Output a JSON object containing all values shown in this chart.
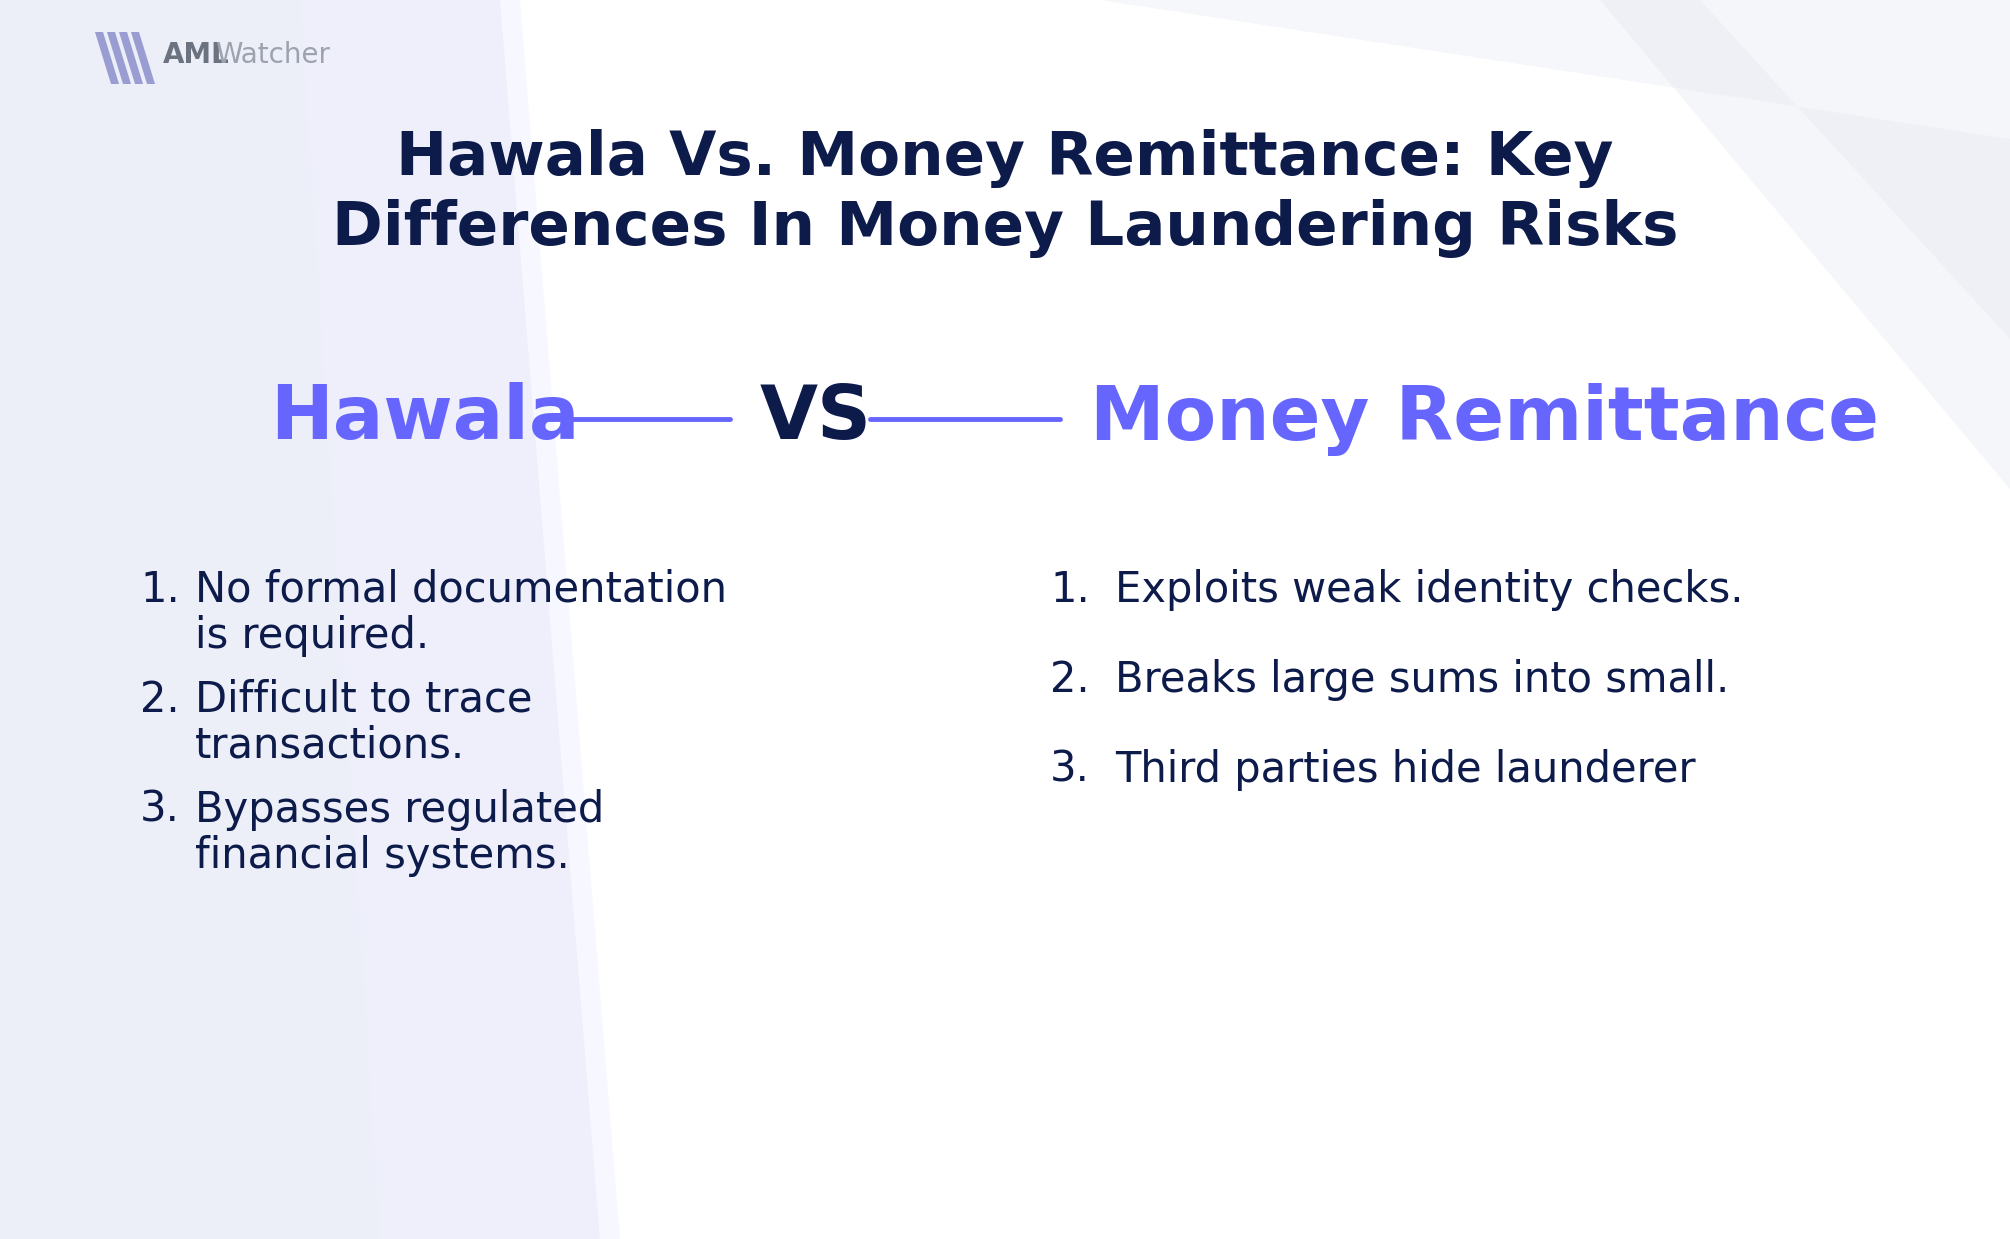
{
  "title_line1": "Hawala Vs. Money Remittance: Key",
  "title_line2": "Differences In Money Laundering Risks",
  "title_color": "#0d1b4b",
  "title_fontsize": 44,
  "bg_color": "#eceef8",
  "logo_text_aml": "AML",
  "logo_text_watcher": "Watcher",
  "logo_color_aml": "#6b7280",
  "logo_color_watcher": "#9ca3af",
  "logo_icon_color": "#8b8fcc",
  "vs_label_color": "#6666ff",
  "hawala_label": "Hawala",
  "vs_label": "VS",
  "remittance_label": "Money Remittance",
  "label_fontsize": 54,
  "hawala_points": [
    [
      "No formal documentation",
      "is required."
    ],
    [
      "Difficult to trace",
      "transactions."
    ],
    [
      "Bypasses regulated",
      "financial systems."
    ]
  ],
  "remittance_points": [
    "Exploits weak identity checks.",
    "Breaks large sums into small.",
    "Third parties hide launderer"
  ],
  "points_color": "#0d1b4b",
  "points_fontsize": 30,
  "line_color": "#6666ff",
  "accent_color": "#8b8fcc"
}
